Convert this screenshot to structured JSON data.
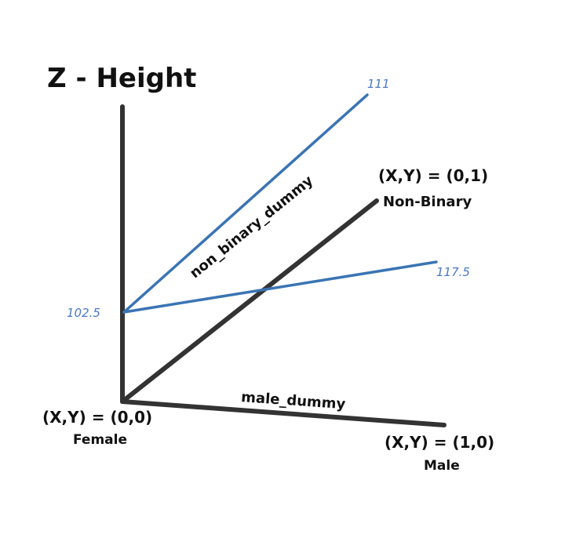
{
  "title": "Z - Height",
  "axes": {
    "male_axis_label": "male_dummy",
    "nonbinary_axis_label": "non_binary_dummy"
  },
  "points": {
    "origin": {
      "coords": "(X,Y) = (0,0)",
      "name": "Female"
    },
    "male": {
      "coords": "(X,Y) = (1,0)",
      "name": "Male"
    },
    "nonbinary": {
      "coords": "(X,Y) = (0,1)",
      "name": "Non-Binary"
    }
  },
  "values": {
    "intercept": "102.5",
    "nonbinary_end": "111",
    "male_end": "117.5"
  },
  "colors": {
    "axis": "#333333",
    "line": "#3a74b4",
    "value_text": "#4a78c8",
    "text": "#111111"
  }
}
